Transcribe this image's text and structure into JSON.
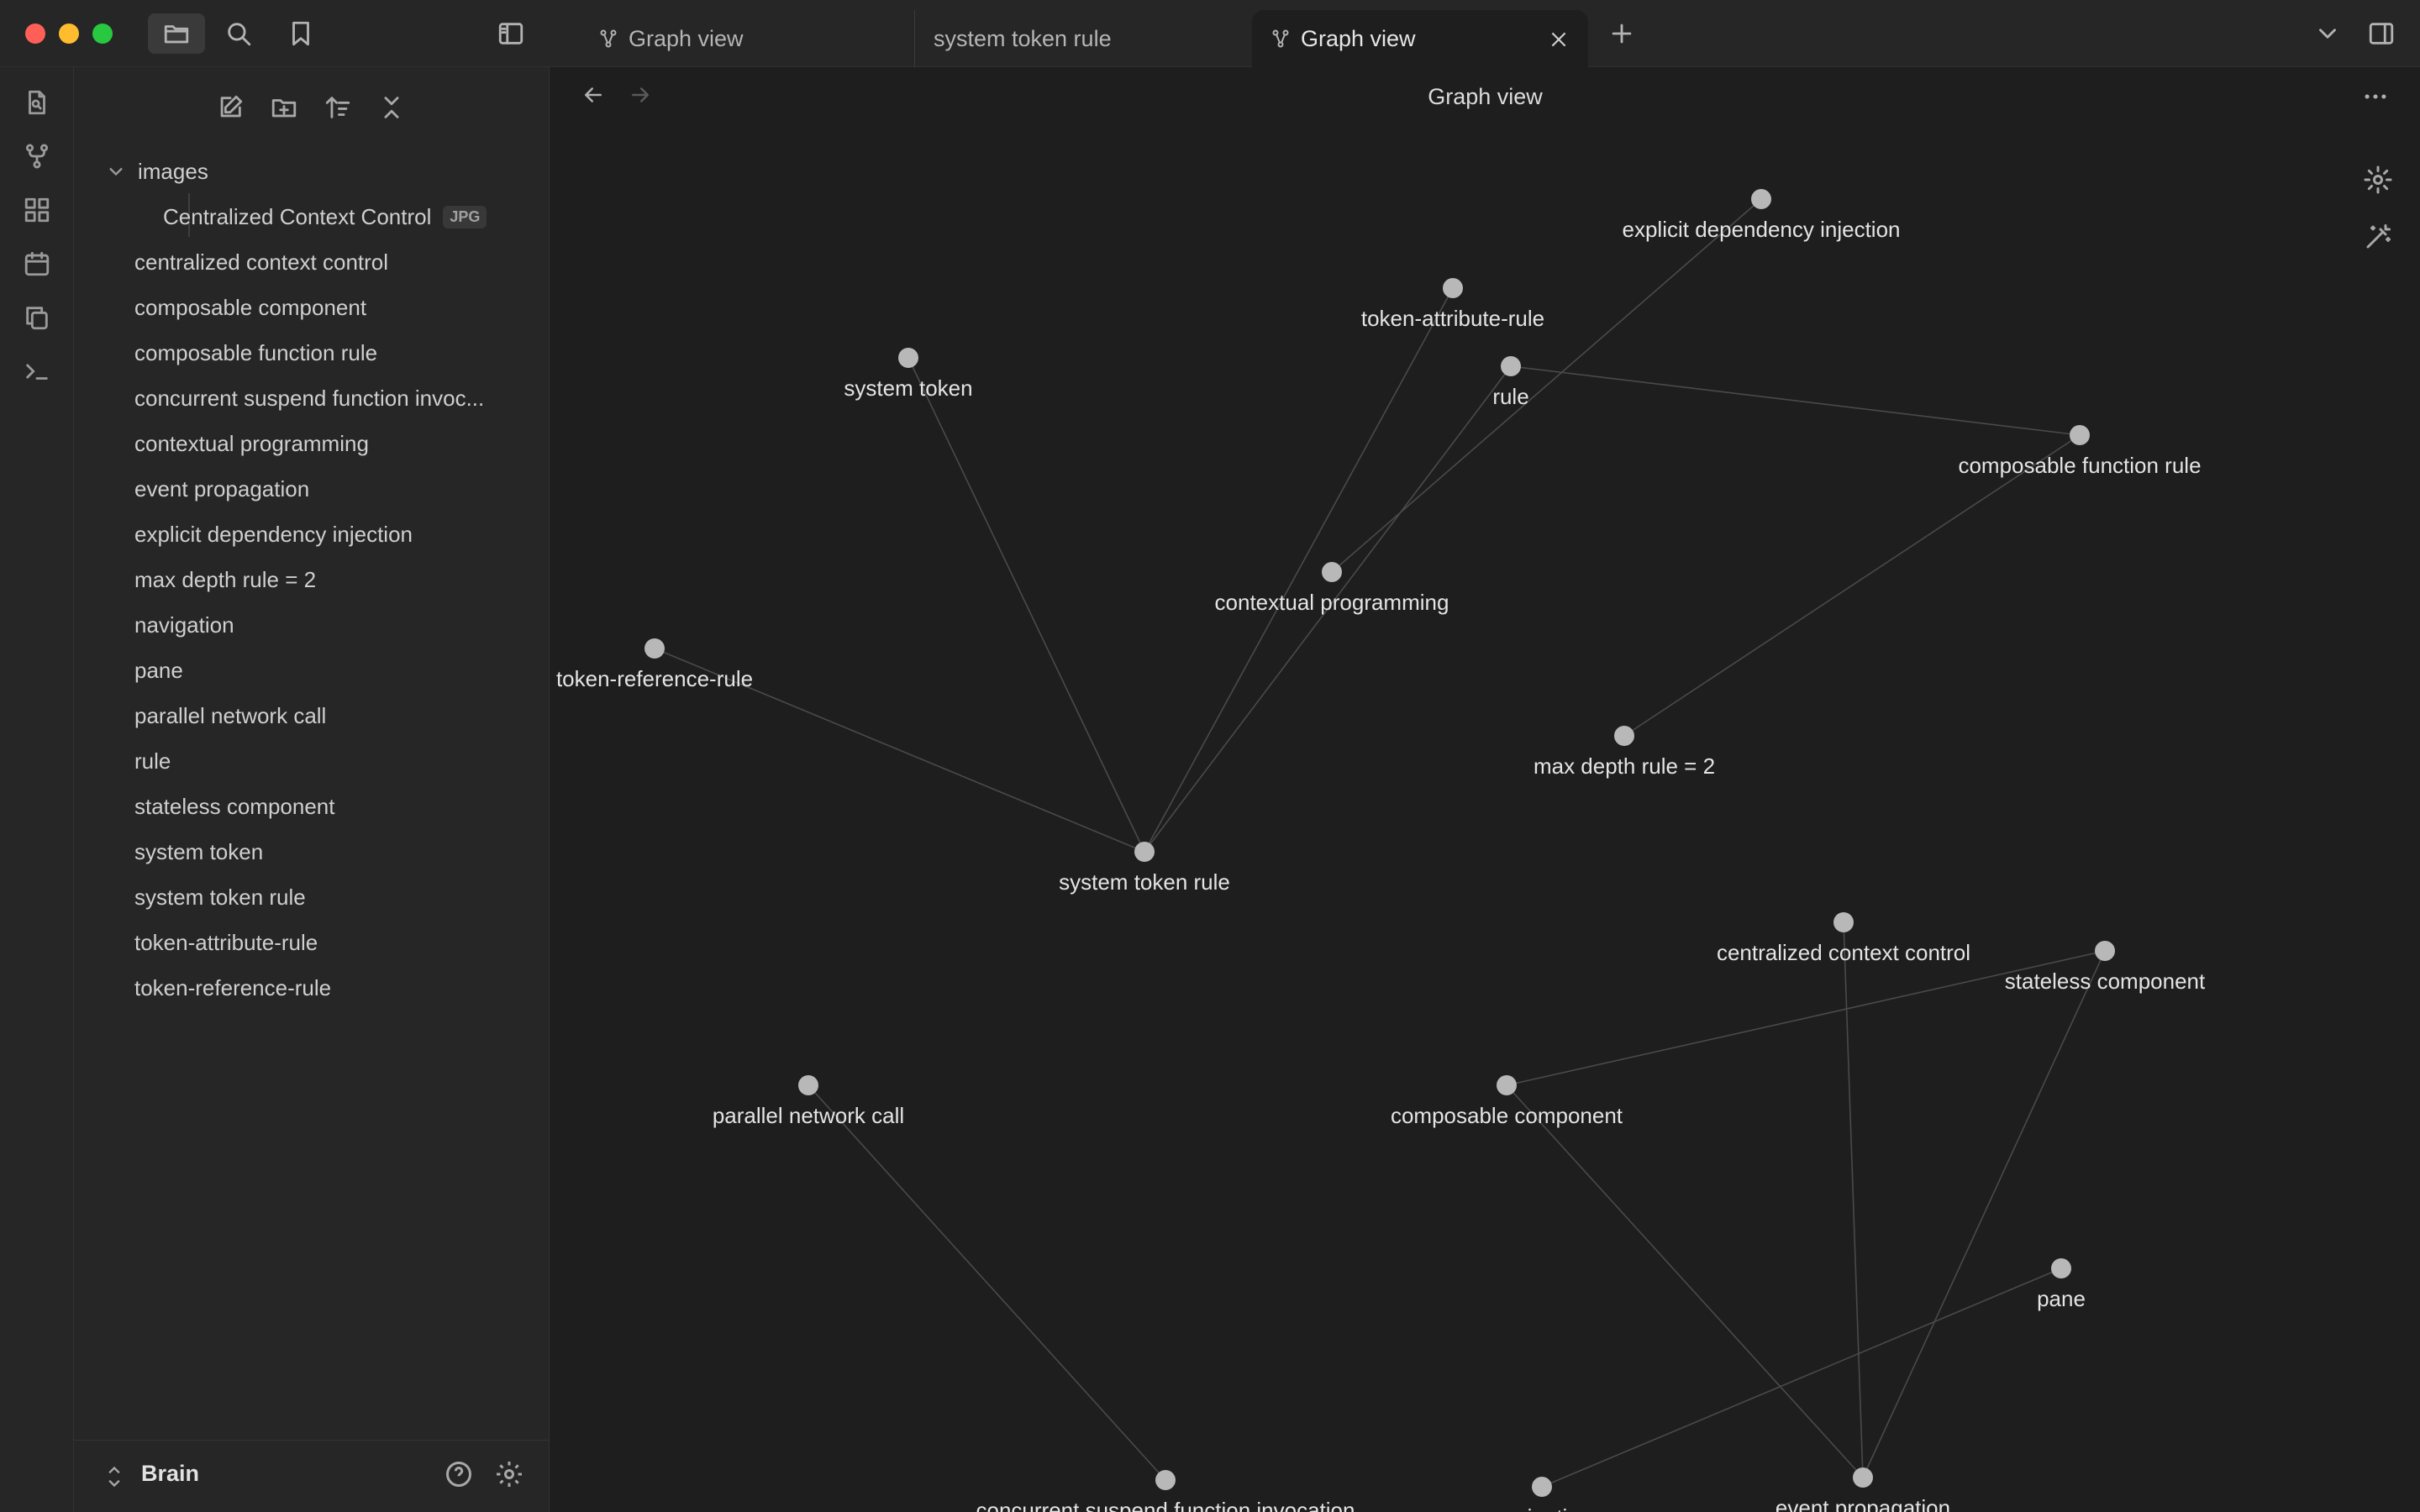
{
  "tabs": [
    {
      "label": "Graph view",
      "icon": "graph-icon"
    },
    {
      "label": "system token rule"
    },
    {
      "label": "Graph view",
      "icon": "graph-icon",
      "active": true
    }
  ],
  "explorer": {
    "folder": {
      "name": "images",
      "expanded": true
    },
    "folder_children": [
      {
        "name": "Centralized Context Control",
        "badge": "JPG"
      }
    ],
    "files": [
      "centralized context control",
      "composable component",
      "composable function rule",
      "concurrent suspend function invoc...",
      "contextual programming",
      "event propagation",
      "explicit dependency injection",
      "max depth rule = 2",
      "navigation",
      "pane",
      "parallel network call",
      "rule",
      "stateless component",
      "system token",
      "system token rule",
      "token-attribute-rule",
      "token-reference-rule"
    ],
    "vault_name": "Brain"
  },
  "view": {
    "title": "Graph view"
  },
  "graph": {
    "nodes": [
      {
        "id": "explicit dependency injection",
        "label": "explicit dependency injection"
      },
      {
        "id": "token-attribute-rule",
        "label": "token-attribute-rule"
      },
      {
        "id": "system token",
        "label": "system token"
      },
      {
        "id": "rule",
        "label": "rule"
      },
      {
        "id": "composable function rule",
        "label": "composable function rule"
      },
      {
        "id": "contextual programming",
        "label": "contextual programming"
      },
      {
        "id": "token-reference-rule",
        "label": "token-reference-rule"
      },
      {
        "id": "max depth rule = 2",
        "label": "max depth rule = 2"
      },
      {
        "id": "system token rule",
        "label": "system token rule"
      },
      {
        "id": "centralized context control",
        "label": "centralized context control"
      },
      {
        "id": "stateless component",
        "label": "stateless component"
      },
      {
        "id": "parallel network call",
        "label": "parallel network call"
      },
      {
        "id": "composable component",
        "label": "composable component"
      },
      {
        "id": "pane",
        "label": "pane"
      },
      {
        "id": "concurrent suspend function invocation",
        "label": "concurrent suspend function invocation"
      },
      {
        "id": "navigation",
        "label": "navigation"
      },
      {
        "id": "event propagation",
        "label": "event propagation"
      }
    ],
    "edges": [
      [
        "explicit dependency injection",
        "contextual programming"
      ],
      [
        "rule",
        "composable function rule"
      ],
      [
        "rule",
        "system token rule"
      ],
      [
        "composable function rule",
        "max depth rule = 2"
      ],
      [
        "system token",
        "system token rule"
      ],
      [
        "token-attribute-rule",
        "system token rule"
      ],
      [
        "token-reference-rule",
        "system token rule"
      ],
      [
        "composable component",
        "stateless component"
      ],
      [
        "centralized context control",
        "event propagation"
      ],
      [
        "stateless component",
        "event propagation"
      ],
      [
        "composable component",
        "event propagation"
      ],
      [
        "pane",
        "navigation"
      ],
      [
        "parallel network call",
        "concurrent suspend function invocation"
      ]
    ]
  }
}
